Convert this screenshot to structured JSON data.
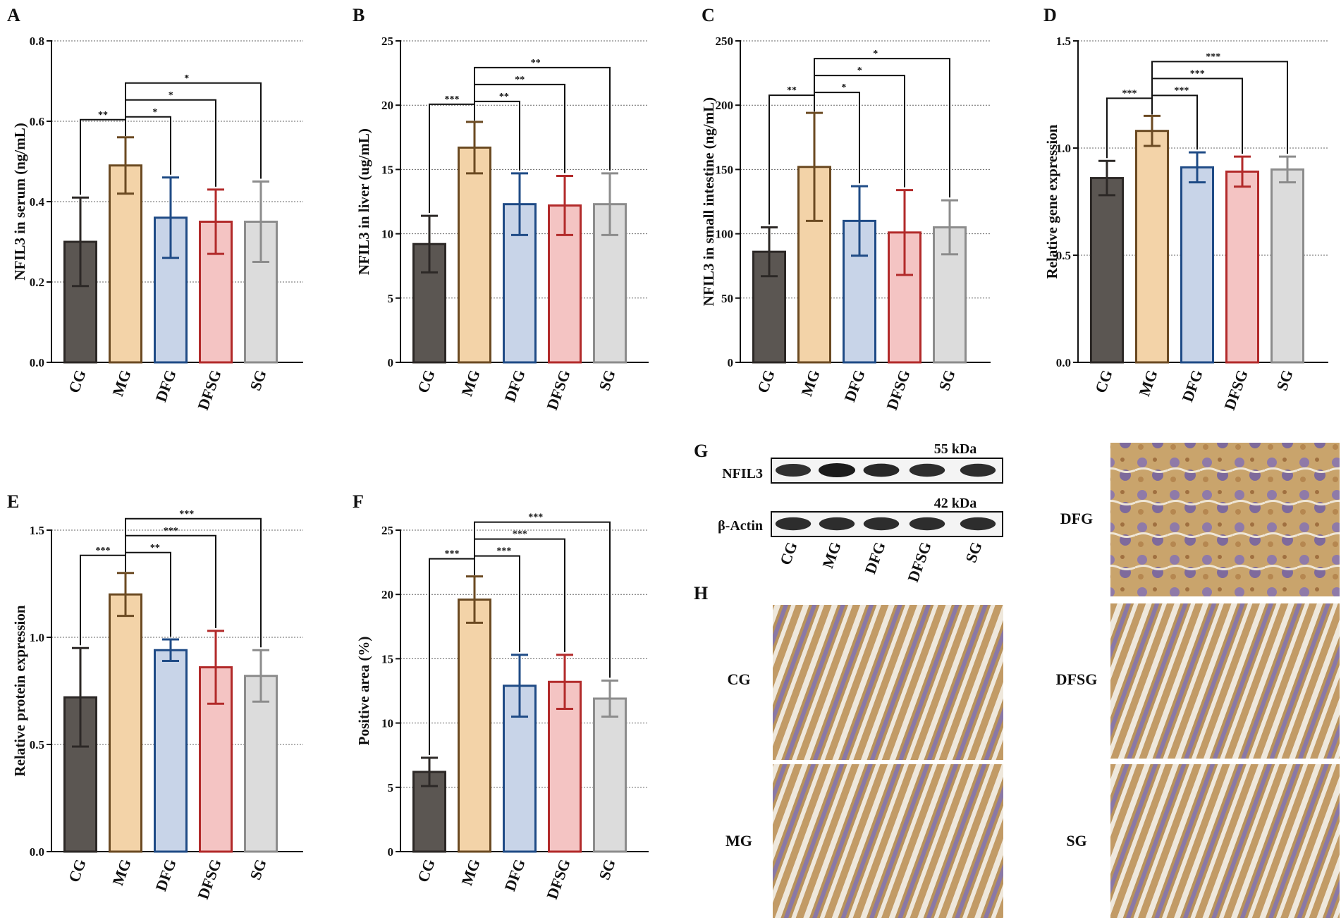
{
  "colors": {
    "CG": {
      "fill": "#5b5652",
      "stroke": "#2c2826"
    },
    "MG": {
      "fill": "#f3d3a8",
      "stroke": "#6b4a22"
    },
    "DFG": {
      "fill": "#c8d4e8",
      "stroke": "#1f4b86"
    },
    "DFSG": {
      "fill": "#f4c4c3",
      "stroke": "#b22a2a"
    },
    "SG": {
      "fill": "#dcdcdc",
      "stroke": "#8c8c8c"
    }
  },
  "chart_data": [
    {
      "panel": "A",
      "type": "bar",
      "ylabel": "NFIL3 in serum (ng/mL)",
      "categories": [
        "CG",
        "MG",
        "DFG",
        "DFSG",
        "SG"
      ],
      "values": [
        0.3,
        0.49,
        0.36,
        0.35,
        0.35
      ],
      "errors": [
        0.11,
        0.07,
        0.1,
        0.08,
        0.1
      ],
      "ylim": [
        0,
        0.8
      ],
      "yticks": [
        0.0,
        0.2,
        0.4,
        0.6,
        0.8
      ],
      "ytick_labels": [
        "0.0",
        "0.2",
        "0.4",
        "0.6",
        "0.8"
      ],
      "grid": true,
      "significance": [
        {
          "from": "MG",
          "to": "CG",
          "label": "**"
        },
        {
          "from": "MG",
          "to": "DFG",
          "label": "*"
        },
        {
          "from": "MG",
          "to": "DFSG",
          "label": "*"
        },
        {
          "from": "MG",
          "to": "SG",
          "label": "*"
        }
      ]
    },
    {
      "panel": "B",
      "type": "bar",
      "ylabel": "NFIL3 in liver (ug/mL)",
      "categories": [
        "CG",
        "MG",
        "DFG",
        "DFSG",
        "SG"
      ],
      "values": [
        9.2,
        16.7,
        12.3,
        12.2,
        12.3
      ],
      "errors": [
        2.2,
        2.0,
        2.4,
        2.3,
        2.4
      ],
      "ylim": [
        0,
        25
      ],
      "yticks": [
        0,
        5,
        10,
        15,
        20,
        25
      ],
      "ytick_labels": [
        "0",
        "5",
        "10",
        "15",
        "20",
        "25"
      ],
      "grid": true,
      "significance": [
        {
          "from": "MG",
          "to": "CG",
          "label": "***"
        },
        {
          "from": "MG",
          "to": "DFG",
          "label": "**"
        },
        {
          "from": "MG",
          "to": "DFSG",
          "label": "**"
        },
        {
          "from": "MG",
          "to": "SG",
          "label": "**"
        }
      ]
    },
    {
      "panel": "C",
      "type": "bar",
      "ylabel": "NFIL3 in small intestine (ng/mL)",
      "categories": [
        "CG",
        "MG",
        "DFG",
        "DFSG",
        "SG"
      ],
      "values": [
        86,
        152,
        110,
        101,
        105
      ],
      "errors": [
        19,
        42,
        27,
        33,
        21
      ],
      "ylim": [
        0,
        250
      ],
      "yticks": [
        0,
        50,
        100,
        150,
        200,
        250
      ],
      "ytick_labels": [
        "0",
        "50",
        "100",
        "150",
        "200",
        "250"
      ],
      "grid": true,
      "significance": [
        {
          "from": "MG",
          "to": "CG",
          "label": "**"
        },
        {
          "from": "MG",
          "to": "DFG",
          "label": "*"
        },
        {
          "from": "MG",
          "to": "DFSG",
          "label": "*"
        },
        {
          "from": "MG",
          "to": "SG",
          "label": "*"
        }
      ]
    },
    {
      "panel": "D",
      "type": "bar",
      "ylabel": "Relative gene expression",
      "categories": [
        "CG",
        "MG",
        "DFG",
        "DFSG",
        "SG"
      ],
      "values": [
        0.86,
        1.08,
        0.91,
        0.89,
        0.9
      ],
      "errors": [
        0.08,
        0.07,
        0.07,
        0.07,
        0.06
      ],
      "ylim": [
        0,
        1.5
      ],
      "yticks": [
        0.0,
        0.5,
        1.0,
        1.5
      ],
      "ytick_labels": [
        "0.0",
        "0.5",
        "1.0",
        "1.5"
      ],
      "grid": true,
      "significance": [
        {
          "from": "MG",
          "to": "CG",
          "label": "***"
        },
        {
          "from": "MG",
          "to": "DFG",
          "label": "***"
        },
        {
          "from": "MG",
          "to": "DFSG",
          "label": "***"
        },
        {
          "from": "MG",
          "to": "SG",
          "label": "***"
        }
      ]
    },
    {
      "panel": "E",
      "type": "bar",
      "ylabel": "Relative protein expression",
      "categories": [
        "CG",
        "MG",
        "DFG",
        "DFSG",
        "SG"
      ],
      "values": [
        0.72,
        1.2,
        0.94,
        0.86,
        0.82
      ],
      "errors": [
        0.23,
        0.1,
        0.05,
        0.17,
        0.12
      ],
      "ylim": [
        0,
        1.5
      ],
      "yticks": [
        0.0,
        0.5,
        1.0,
        1.5
      ],
      "ytick_labels": [
        "0.0",
        "0.5",
        "1.0",
        "1.5"
      ],
      "grid": true,
      "significance": [
        {
          "from": "MG",
          "to": "CG",
          "label": "***"
        },
        {
          "from": "MG",
          "to": "DFG",
          "label": "**"
        },
        {
          "from": "MG",
          "to": "DFSG",
          "label": "***"
        },
        {
          "from": "MG",
          "to": "SG",
          "label": "***"
        }
      ]
    },
    {
      "panel": "F",
      "type": "bar",
      "ylabel": "Positive area (%)",
      "categories": [
        "CG",
        "MG",
        "DFG",
        "DFSG",
        "SG"
      ],
      "values": [
        6.2,
        19.6,
        12.9,
        13.2,
        11.9
      ],
      "errors": [
        1.1,
        1.8,
        2.4,
        2.1,
        1.4
      ],
      "ylim": [
        0,
        25
      ],
      "yticks": [
        0,
        5,
        10,
        15,
        20,
        25
      ],
      "ytick_labels": [
        "0",
        "5",
        "10",
        "15",
        "20",
        "25"
      ],
      "grid": true,
      "significance": [
        {
          "from": "MG",
          "to": "CG",
          "label": "***"
        },
        {
          "from": "MG",
          "to": "DFG",
          "label": "***"
        },
        {
          "from": "MG",
          "to": "DFSG",
          "label": "***"
        },
        {
          "from": "MG",
          "to": "SG",
          "label": "***"
        }
      ]
    }
  ],
  "western_blot": {
    "panel": "G",
    "bands": [
      {
        "label": "NFIL3",
        "kda": "55 kDa",
        "intensity": [
          0.75,
          1.0,
          0.85,
          0.8,
          0.8
        ]
      },
      {
        "label": "β-Actin",
        "kda": "42 kDa",
        "intensity": [
          0.8,
          0.8,
          0.8,
          0.8,
          0.8
        ]
      }
    ],
    "lanes": [
      "CG",
      "MG",
      "DFG",
      "DFSG",
      "SG"
    ]
  },
  "ihc": {
    "panel": "H",
    "left_labels": [
      "CG",
      "MG"
    ],
    "right_labels": [
      "DFG",
      "DFSG",
      "SG"
    ]
  }
}
